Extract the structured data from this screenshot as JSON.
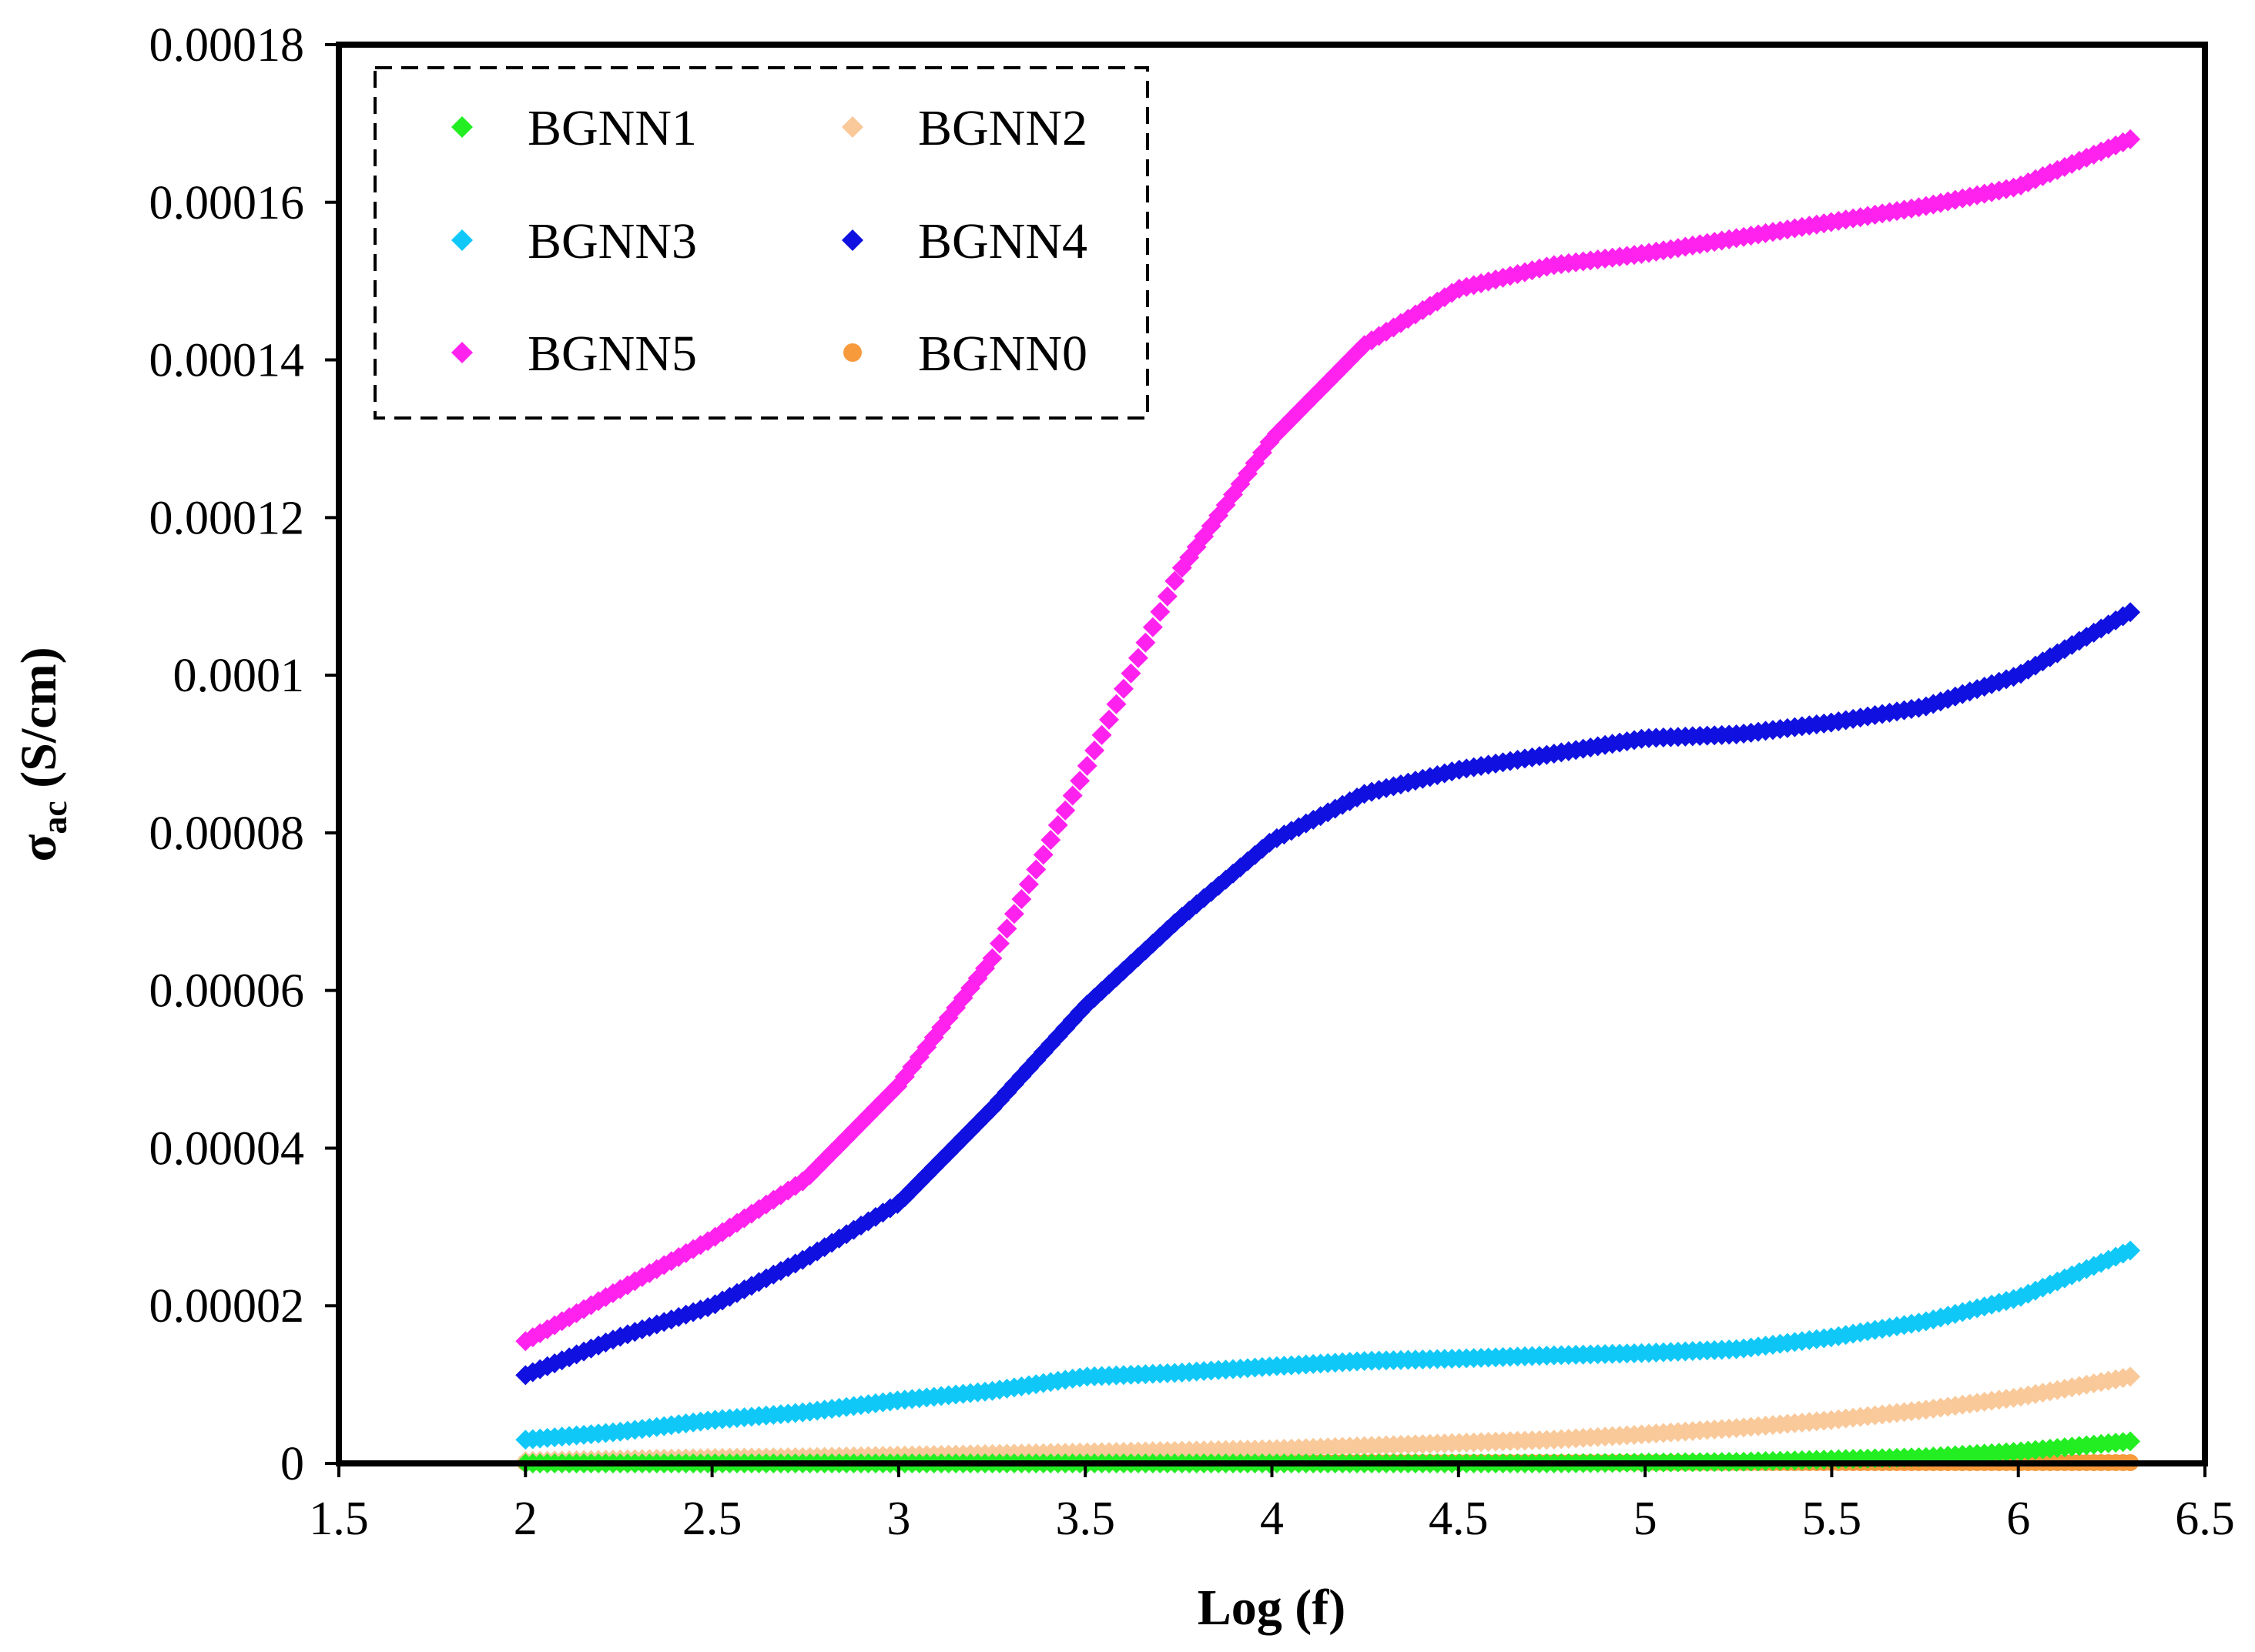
{
  "chart_data": {
    "type": "scatter",
    "title": "",
    "xlabel": "Log (f)",
    "ylabel": {
      "main": "σ",
      "subscript": "ac",
      "units": " (S/cm)"
    },
    "xlim": [
      1.5,
      6.5
    ],
    "ylim": [
      0,
      0.00018
    ],
    "x_ticks": [
      "1.5",
      "2",
      "2.5",
      "3",
      "3.5",
      "4",
      "4.5",
      "5",
      "5.5",
      "6",
      "6.5"
    ],
    "y_ticks": [
      "0",
      "0.00002",
      "0.00004",
      "0.00006",
      "0.00008",
      "0.0001",
      "0.00012",
      "0.00014",
      "0.00016",
      "0.00018"
    ],
    "grid": false,
    "legend_position": "top-left",
    "x": [
      2.0,
      2.25,
      2.5,
      2.75,
      3.0,
      3.25,
      3.5,
      3.75,
      4.0,
      4.25,
      4.5,
      4.75,
      5.0,
      5.25,
      5.5,
      5.75,
      6.0,
      6.3
    ],
    "series": [
      {
        "name": "BGNN1",
        "color": "#22ee22",
        "marker": "diamond",
        "values": [
          0,
          0,
          0,
          0,
          0,
          0,
          0,
          0,
          0,
          0,
          0,
          0,
          1e-07,
          2e-07,
          5e-07,
          8e-07,
          1.5e-06,
          2.8e-06
        ]
      },
      {
        "name": "BGNN2",
        "color": "#f9c99a",
        "marker": "diamond",
        "values": [
          3e-07,
          5e-07,
          7e-07,
          8e-07,
          1e-06,
          1.2e-06,
          1.4e-06,
          1.6e-06,
          1.8e-06,
          2.2e-06,
          2.6e-06,
          3e-06,
          3.7e-06,
          4.5e-06,
          5.5e-06,
          6.8e-06,
          8.4e-06,
          1.1e-05
        ]
      },
      {
        "name": "BGNN3",
        "color": "#10c8f8",
        "marker": "diamond",
        "values": [
          3e-06,
          4e-06,
          5.5e-06,
          6.5e-06,
          8e-06,
          9.2e-06,
          1.1e-05,
          1.15e-05,
          1.23e-05,
          1.3e-05,
          1.33e-05,
          1.37e-05,
          1.4e-05,
          1.45e-05,
          1.6e-05,
          1.8e-05,
          2.1e-05,
          2.7e-05
        ]
      },
      {
        "name": "BGNN4",
        "color": "#1010e0",
        "marker": "diamond",
        "values": [
          1.12e-05,
          1.6e-05,
          2e-05,
          2.6e-05,
          3.3e-05,
          4.5e-05,
          5.8e-05,
          6.9e-05,
          7.9e-05,
          8.5e-05,
          8.8e-05,
          9e-05,
          9.2e-05,
          9.25e-05,
          9.4e-05,
          9.6e-05,
          0.0001,
          0.000108
        ]
      },
      {
        "name": "BGNN5",
        "color": "#ff22ee",
        "marker": "diamond",
        "values": [
          1.55e-05,
          2.2e-05,
          2.85e-05,
          3.6e-05,
          4.8e-05,
          6.4e-05,
          8.8e-05,
          0.000113,
          0.00013,
          0.000142,
          0.000149,
          0.000152,
          0.0001535,
          0.0001555,
          0.0001575,
          0.0001595,
          0.000162,
          0.000168
        ]
      },
      {
        "name": "BGNN0",
        "color": "#f79a3c",
        "marker": "circle",
        "values": [
          1e-07,
          1e-07,
          1e-07,
          1e-07,
          1e-07,
          1e-07,
          1e-07,
          1e-07,
          1e-07,
          1e-07,
          1e-07,
          1e-07,
          1e-07,
          1e-07,
          1e-07,
          1e-07,
          1e-07,
          1e-07
        ]
      }
    ]
  }
}
